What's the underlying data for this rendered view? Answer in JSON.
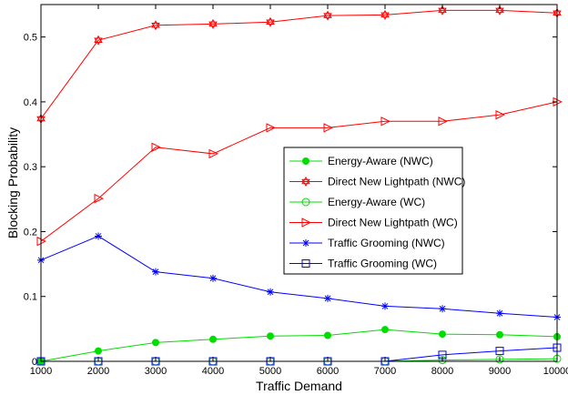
{
  "chart_data": {
    "type": "line",
    "xlabel": "Traffic Demand",
    "ylabel": "Blocking Probability",
    "x": [
      1000,
      2000,
      3000,
      4000,
      5000,
      6000,
      7000,
      8000,
      9000,
      10000
    ],
    "xlim": [
      1000,
      10000
    ],
    "ylim": [
      0,
      0.55
    ],
    "xticks": [
      "1000",
      "2000",
      "3000",
      "4000",
      "5000",
      "6000",
      "7000",
      "8000",
      "9000",
      "10000"
    ],
    "yticks": [
      "0",
      "0.1",
      "0.2",
      "0.3",
      "0.4",
      "0.5"
    ],
    "ytick_values": [
      0,
      0.1,
      0.2,
      0.3,
      0.4,
      0.5
    ],
    "grid": false,
    "legend_position": "center-right",
    "series": [
      {
        "name": "Energy-Aware (NWC)",
        "color": "#00dd00",
        "marker": "filled-circle",
        "values": [
          0.0,
          0.016,
          0.029,
          0.034,
          0.039,
          0.04,
          0.049,
          0.042,
          0.041,
          0.038
        ]
      },
      {
        "name": "Direct New Lightpath (NWC)",
        "color": "#ff0000",
        "marker": "hexagram",
        "values": [
          0.374,
          0.495,
          0.518,
          0.52,
          0.523,
          0.533,
          0.534,
          0.541,
          0.541,
          0.537
        ]
      },
      {
        "name": "Energy-Aware (WC)",
        "color": "#00dd00",
        "marker": "open-circle",
        "values": [
          0.0,
          0.0,
          0.0,
          0.0,
          0.0,
          0.0,
          0.0,
          0.002,
          0.003,
          0.004
        ]
      },
      {
        "name": "Direct New Lightpath (WC)",
        "color": "#ff0000",
        "marker": "right-triangle",
        "values": [
          0.185,
          0.251,
          0.33,
          0.32,
          0.36,
          0.36,
          0.37,
          0.37,
          0.38,
          0.4
        ]
      },
      {
        "name": "Traffic Grooming (NWC)",
        "color": "#0000ff",
        "marker": "asterisk",
        "values": [
          0.156,
          0.193,
          0.138,
          0.128,
          0.107,
          0.097,
          0.085,
          0.081,
          0.074,
          0.068
        ]
      },
      {
        "name": "Traffic Grooming (WC)",
        "color": "#0000ff",
        "marker": "open-square",
        "values": [
          0.0,
          0.0,
          0.0,
          0.0,
          0.0,
          0.0,
          0.0,
          0.01,
          0.016,
          0.021
        ]
      }
    ]
  }
}
